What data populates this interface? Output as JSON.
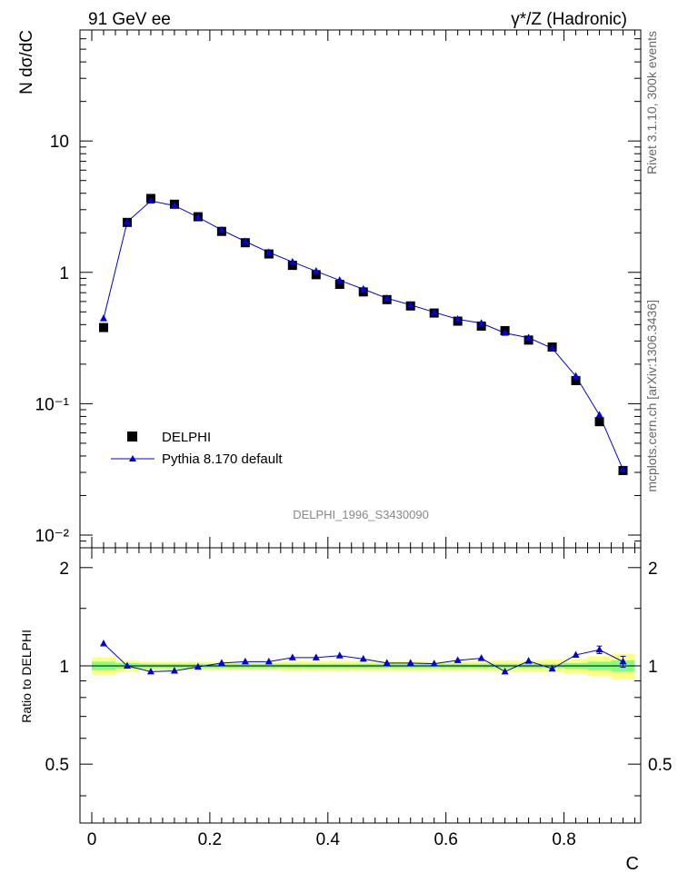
{
  "header": {
    "left_title": "91 GeV ee",
    "right_title": "γ*/Z (Hadronic)"
  },
  "side_text": {
    "rivet": "Rivet 3.1.10,  300k events",
    "mcplots": "mcplots.cern.ch [arXiv:1306.3436]"
  },
  "watermark": "DELPHI_1996_S3430090",
  "legend": {
    "data_label": "DELPHI",
    "mc_label": "Pythia 8.170 default"
  },
  "colors": {
    "data": "#000000",
    "mc": "#0000dd",
    "band_outer": "#ffff80",
    "band_inner": "#80ff80"
  },
  "chart_data": [
    {
      "type": "scatter",
      "panel": "main",
      "ylabel": "N dσ/dC",
      "yscale": "log",
      "xlim": [
        -0.02,
        0.93
      ],
      "ylim": [
        0.008,
        70
      ],
      "y_tick_labels": [
        "10⁻²",
        "10⁻¹",
        "1",
        "10"
      ],
      "x": [
        0.02,
        0.06,
        0.1,
        0.14,
        0.18,
        0.22,
        0.26,
        0.3,
        0.34,
        0.38,
        0.42,
        0.46,
        0.5,
        0.54,
        0.58,
        0.62,
        0.66,
        0.7,
        0.74,
        0.78,
        0.82,
        0.86,
        0.9
      ],
      "series": [
        {
          "name": "DELPHI",
          "marker": "square",
          "values": [
            0.38,
            2.4,
            3.65,
            3.3,
            2.65,
            2.05,
            1.68,
            1.38,
            1.13,
            0.96,
            0.81,
            0.71,
            0.62,
            0.555,
            0.49,
            0.425,
            0.39,
            0.36,
            0.305,
            0.27,
            0.15,
            0.073,
            0.031
          ]
        },
        {
          "name": "Pythia 8.170 default",
          "marker": "triangle",
          "values": [
            0.445,
            2.42,
            3.5,
            3.22,
            2.63,
            2.1,
            1.72,
            1.42,
            1.2,
            1.02,
            0.87,
            0.745,
            0.635,
            0.565,
            0.497,
            0.44,
            0.41,
            0.345,
            0.318,
            0.264,
            0.162,
            0.082,
            0.0315
          ]
        }
      ]
    },
    {
      "type": "line",
      "panel": "ratio",
      "xlabel": "C",
      "ylabel": "Ratio to DELPHI",
      "xlim": [
        -0.02,
        0.93
      ],
      "ylim": [
        0.33,
        2.3
      ],
      "x_tick_labels": [
        "0",
        "0.2",
        "0.4",
        "0.6",
        "0.8"
      ],
      "y_tick_labels": [
        "0.5",
        "1",
        "2"
      ],
      "x": [
        0.02,
        0.06,
        0.1,
        0.14,
        0.18,
        0.22,
        0.26,
        0.3,
        0.34,
        0.38,
        0.42,
        0.46,
        0.5,
        0.54,
        0.58,
        0.62,
        0.66,
        0.7,
        0.74,
        0.78,
        0.82,
        0.86,
        0.9
      ],
      "series": [
        {
          "name": "Pythia 8.170 default",
          "values": [
            1.17,
            1.0,
            0.96,
            0.965,
            0.993,
            1.02,
            1.03,
            1.03,
            1.06,
            1.06,
            1.075,
            1.05,
            1.02,
            1.02,
            1.015,
            1.04,
            1.055,
            0.96,
            1.035,
            0.98,
            1.08,
            1.12,
            1.03
          ],
          "errors": [
            0,
            0,
            0,
            0,
            0,
            0,
            0,
            0,
            0,
            0,
            0,
            0,
            0,
            0,
            0,
            0,
            0,
            0,
            0,
            0,
            0,
            0.03,
            0.04
          ]
        }
      ],
      "band_inner_halfwidth": [
        0.03,
        0.02,
        0.015,
        0.015,
        0.015,
        0.015,
        0.015,
        0.015,
        0.015,
        0.015,
        0.015,
        0.015,
        0.015,
        0.015,
        0.015,
        0.015,
        0.015,
        0.015,
        0.015,
        0.015,
        0.02,
        0.03,
        0.04
      ],
      "band_outer_halfwidth": [
        0.06,
        0.04,
        0.03,
        0.03,
        0.03,
        0.03,
        0.03,
        0.03,
        0.035,
        0.035,
        0.035,
        0.035,
        0.035,
        0.035,
        0.035,
        0.035,
        0.035,
        0.04,
        0.04,
        0.045,
        0.05,
        0.07,
        0.09
      ]
    }
  ]
}
